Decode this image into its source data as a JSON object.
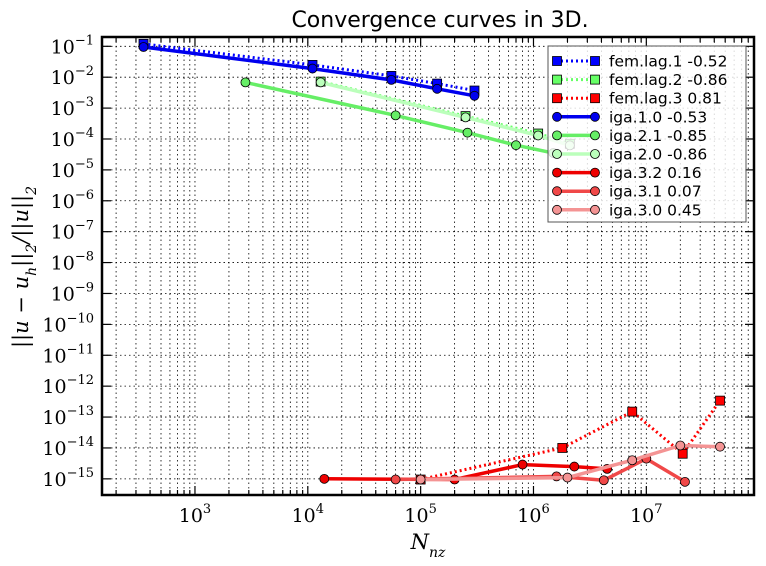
{
  "chart_data": {
    "type": "line",
    "title": "Convergence curves in 3D.",
    "xlabel": "N_nz",
    "ylabel": "||u - u_h||_2/||u||_2",
    "xscale": "log",
    "yscale": "log",
    "xlim": [
      150,
      90000000
    ],
    "ylim": [
      3e-16,
      0.2
    ],
    "x_ticks": [
      {
        "value": 1000,
        "base": "10",
        "exp": "3"
      },
      {
        "value": 10000,
        "base": "10",
        "exp": "4"
      },
      {
        "value": 100000,
        "base": "10",
        "exp": "5"
      },
      {
        "value": 1000000,
        "base": "10",
        "exp": "6"
      },
      {
        "value": 10000000,
        "base": "10",
        "exp": "7"
      }
    ],
    "y_ticks": [
      {
        "value": 1e-15,
        "base": "10",
        "exp": "−15"
      },
      {
        "value": 1e-14,
        "base": "10",
        "exp": "−14"
      },
      {
        "value": 1e-13,
        "base": "10",
        "exp": "−13"
      },
      {
        "value": 1e-12,
        "base": "10",
        "exp": "−12"
      },
      {
        "value": 1e-11,
        "base": "10",
        "exp": "−11"
      },
      {
        "value": 1e-10,
        "base": "10",
        "exp": "−10"
      },
      {
        "value": 1e-09,
        "base": "10",
        "exp": "−9"
      },
      {
        "value": 1e-08,
        "base": "10",
        "exp": "−8"
      },
      {
        "value": 1e-07,
        "base": "10",
        "exp": "−7"
      },
      {
        "value": 1e-06,
        "base": "10",
        "exp": "−6"
      },
      {
        "value": 1e-05,
        "base": "10",
        "exp": "−5"
      },
      {
        "value": 0.0001,
        "base": "10",
        "exp": "−4"
      },
      {
        "value": 0.001,
        "base": "10",
        "exp": "−3"
      },
      {
        "value": 0.01,
        "base": "10",
        "exp": "−2"
      },
      {
        "value": 0.1,
        "base": "10",
        "exp": "−1"
      }
    ],
    "grid": true,
    "legend_position": "top-right",
    "series": [
      {
        "name": "fem.lag.1 -0.52",
        "color": "#0000ff",
        "linestyle": "dotted",
        "marker": "square",
        "x": [
          350,
          11000,
          55000,
          140000,
          300000
        ],
        "y": [
          0.12,
          0.025,
          0.011,
          0.0062,
          0.0037
        ]
      },
      {
        "name": "fem.lag.2 -0.86",
        "color": "#66ff66",
        "linestyle": "dotted",
        "marker": "square",
        "x": [
          13000,
          250000,
          1100000,
          2100000
        ],
        "y": [
          0.0072,
          0.00055,
          0.00015,
          7e-05
        ]
      },
      {
        "name": "fem.lag.3 0.81",
        "color": "#ff0000",
        "linestyle": "dotted",
        "marker": "square",
        "x": [
          100000,
          1800000,
          7500000,
          21000000,
          45000000
        ],
        "y": [
          9.5e-16,
          1e-14,
          1.5e-13,
          6.5e-15,
          3.4e-13
        ]
      },
      {
        "name": "iga.1.0 -0.53",
        "color": "#0000ee",
        "linestyle": "solid",
        "marker": "circle",
        "x": [
          350,
          11000,
          55000,
          140000,
          300000
        ],
        "y": [
          0.095,
          0.019,
          0.0082,
          0.0042,
          0.0025
        ]
      },
      {
        "name": "iga.2.1 -0.85",
        "color": "#66ee66",
        "linestyle": "solid",
        "marker": "circle",
        "x": [
          2800,
          60000,
          260000,
          700000,
          1500000
        ],
        "y": [
          0.0068,
          0.00058,
          0.00016,
          6.3e-05,
          3.5e-05
        ]
      },
      {
        "name": "iga.2.0 -0.86",
        "color": "#bbffbb",
        "linestyle": "solid",
        "marker": "circle",
        "x": [
          13000,
          250000,
          1100000,
          2100000
        ],
        "y": [
          0.0068,
          0.0005,
          0.00013,
          6.2e-05
        ]
      },
      {
        "name": "iga.3.2 0.16",
        "color": "#ee0000",
        "linestyle": "solid",
        "marker": "circle",
        "x": [
          14000,
          200000,
          800000,
          2300000,
          4500000
        ],
        "y": [
          1e-15,
          9.5e-16,
          2.9e-15,
          2.5e-15,
          2.1e-15
        ]
      },
      {
        "name": "iga.3.1 0.07",
        "color": "#f04848",
        "linestyle": "solid",
        "marker": "circle",
        "x": [
          60000,
          1600000,
          4200000,
          10000000,
          22000000
        ],
        "y": [
          9.5e-16,
          1.2e-15,
          9e-16,
          4.5e-15,
          8e-16
        ]
      },
      {
        "name": "iga.3.0 0.45",
        "color": "#f49494",
        "linestyle": "solid",
        "marker": "circle",
        "x": [
          100000,
          2000000,
          7500000,
          20000000,
          45000000
        ],
        "y": [
          9.5e-16,
          1.1e-15,
          4e-15,
          1.2e-14,
          1.1e-14
        ]
      }
    ]
  }
}
